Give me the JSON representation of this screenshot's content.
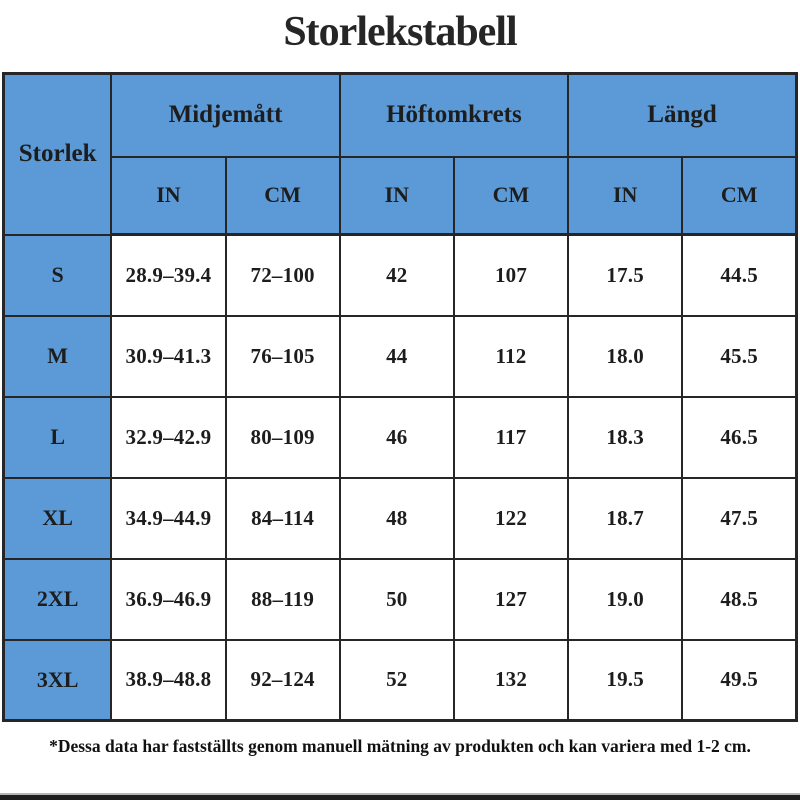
{
  "title": "Storlekstabell",
  "colors": {
    "header_blue": "#5b9ad6",
    "border": "#262626",
    "text": "#1d1d1d"
  },
  "chart_data": {
    "type": "table",
    "title": "Storlekstabell",
    "corner_header": "Storlek",
    "column_groups": [
      {
        "label": "Midjemått",
        "units": [
          "IN",
          "CM"
        ]
      },
      {
        "label": "Höftomkrets",
        "units": [
          "IN",
          "CM"
        ]
      },
      {
        "label": "Längd",
        "units": [
          "IN",
          "CM"
        ]
      }
    ],
    "unit_row": [
      "IN",
      "CM",
      "IN",
      "CM",
      "IN",
      "CM"
    ],
    "rows": [
      {
        "size": "S",
        "values": [
          "28.9–39.4",
          "72–100",
          "42",
          "107",
          "17.5",
          "44.5"
        ]
      },
      {
        "size": "M",
        "values": [
          "30.9–41.3",
          "76–105",
          "44",
          "112",
          "18.0",
          "45.5"
        ]
      },
      {
        "size": "L",
        "values": [
          "32.9–42.9",
          "80–109",
          "46",
          "117",
          "18.3",
          "46.5"
        ]
      },
      {
        "size": "XL",
        "values": [
          "34.9–44.9",
          "84–114",
          "48",
          "122",
          "18.7",
          "47.5"
        ]
      },
      {
        "size": "2XL",
        "values": [
          "36.9–46.9",
          "88–119",
          "50",
          "127",
          "19.0",
          "48.5"
        ]
      },
      {
        "size": "3XL",
        "values": [
          "38.9–48.8",
          "92–124",
          "52",
          "132",
          "19.5",
          "49.5"
        ]
      }
    ],
    "footnote": "*Dessa data har fastställts genom manuell mätning av produkten och kan variera med 1-2 cm."
  }
}
